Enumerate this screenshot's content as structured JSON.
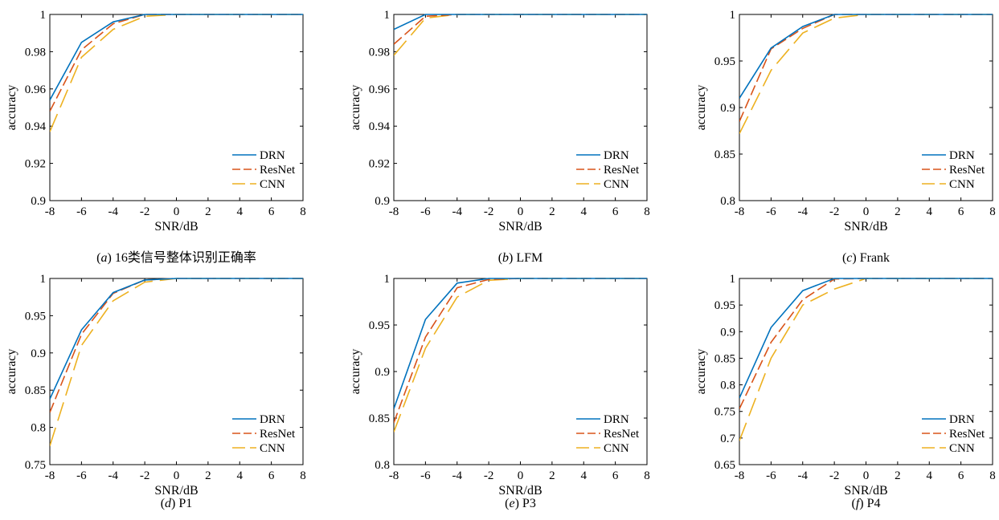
{
  "chart_data": [
    {
      "type": "line",
      "caption_tag": "a",
      "caption_text": "16类信号整体识别正确率",
      "xlabel": "SNR/dB",
      "ylabel": "accuracy",
      "xlim": [
        -8,
        8
      ],
      "ylim": [
        0.9,
        1
      ],
      "xticks": [
        "-8",
        "-6",
        "-4",
        "-2",
        "0",
        "2",
        "4",
        "6",
        "8"
      ],
      "yticks": [
        "0.9",
        "0.92",
        "0.94",
        "0.96",
        "0.98",
        "1"
      ],
      "legend_position": "bottom-right",
      "x": [
        -8,
        -6,
        -4,
        -2,
        0,
        2,
        4,
        6,
        8
      ],
      "series": [
        {
          "name": "DRN",
          "color": "#0072BD",
          "dash": "solid",
          "values": [
            0.954,
            0.985,
            0.996,
            1.0,
            1.0,
            1.0,
            1.0,
            1.0,
            1.0
          ]
        },
        {
          "name": "ResNet",
          "color": "#D95319",
          "dash": "dashed",
          "values": [
            0.948,
            0.981,
            0.995,
            1.0,
            1.0,
            1.0,
            1.0,
            1.0,
            1.0
          ]
        },
        {
          "name": "CNN",
          "color": "#EDB120",
          "dash": "longdash",
          "values": [
            0.937,
            0.977,
            0.992,
            0.999,
            1.0,
            1.0,
            1.0,
            1.0,
            1.0
          ]
        }
      ]
    },
    {
      "type": "line",
      "caption_tag": "b",
      "caption_text": "LFM",
      "xlabel": "SNR/dB",
      "ylabel": "accuracy",
      "xlim": [
        -8,
        8
      ],
      "ylim": [
        0.9,
        1
      ],
      "xticks": [
        "-8",
        "-6",
        "-4",
        "-2",
        "0",
        "2",
        "4",
        "6",
        "8"
      ],
      "yticks": [
        "0.9",
        "0.92",
        "0.94",
        "0.96",
        "0.98",
        "1"
      ],
      "legend_position": "bottom-right",
      "x": [
        -8,
        -6,
        -4,
        -2,
        0,
        2,
        4,
        6,
        8
      ],
      "series": [
        {
          "name": "DRN",
          "color": "#0072BD",
          "dash": "solid",
          "values": [
            0.992,
            1.0,
            1.0,
            1.0,
            1.0,
            1.0,
            1.0,
            1.0,
            1.0
          ]
        },
        {
          "name": "ResNet",
          "color": "#D95319",
          "dash": "dashed",
          "values": [
            0.984,
            0.999,
            1.0,
            1.0,
            1.0,
            1.0,
            1.0,
            1.0,
            1.0
          ]
        },
        {
          "name": "CNN",
          "color": "#EDB120",
          "dash": "longdash",
          "values": [
            0.978,
            0.998,
            1.0,
            1.0,
            1.0,
            1.0,
            1.0,
            1.0,
            1.0
          ]
        }
      ]
    },
    {
      "type": "line",
      "caption_tag": "c",
      "caption_text": "Frank",
      "xlabel": "SNR/dB",
      "ylabel": "accuracy",
      "xlim": [
        -8,
        8
      ],
      "ylim": [
        0.8,
        1
      ],
      "xticks": [
        "-8",
        "-6",
        "-4",
        "-2",
        "0",
        "2",
        "4",
        "6",
        "8"
      ],
      "yticks": [
        "0.8",
        "0.85",
        "0.9",
        "0.95",
        "1"
      ],
      "legend_position": "bottom-right",
      "x": [
        -8,
        -6,
        -4,
        -2,
        0,
        2,
        4,
        6,
        8
      ],
      "series": [
        {
          "name": "DRN",
          "color": "#0072BD",
          "dash": "solid",
          "values": [
            0.91,
            0.964,
            0.987,
            1.0,
            1.0,
            1.0,
            1.0,
            1.0,
            1.0
          ]
        },
        {
          "name": "ResNet",
          "color": "#D95319",
          "dash": "dashed",
          "values": [
            0.885,
            0.963,
            0.985,
            1.0,
            1.0,
            1.0,
            1.0,
            1.0,
            1.0
          ]
        },
        {
          "name": "CNN",
          "color": "#EDB120",
          "dash": "longdash",
          "values": [
            0.872,
            0.94,
            0.98,
            0.996,
            1.0,
            1.0,
            1.0,
            1.0,
            1.0
          ]
        }
      ]
    },
    {
      "type": "line",
      "caption_tag": "d",
      "caption_text": "P1",
      "xlabel": "SNR/dB",
      "ylabel": "accuracy",
      "xlim": [
        -8,
        8
      ],
      "ylim": [
        0.75,
        1
      ],
      "xticks": [
        "-8",
        "-6",
        "-4",
        "-2",
        "0",
        "2",
        "4",
        "6",
        "8"
      ],
      "yticks": [
        "0.75",
        "0.8",
        "0.85",
        "0.9",
        "0.95",
        "1"
      ],
      "legend_position": "bottom-right",
      "x": [
        -8,
        -6,
        -4,
        -2,
        0,
        2,
        4,
        6,
        8
      ],
      "series": [
        {
          "name": "DRN",
          "color": "#0072BD",
          "dash": "solid",
          "values": [
            0.838,
            0.931,
            0.981,
            0.998,
            1.0,
            1.0,
            1.0,
            1.0,
            1.0
          ]
        },
        {
          "name": "ResNet",
          "color": "#D95319",
          "dash": "dashed",
          "values": [
            0.82,
            0.925,
            0.98,
            0.998,
            1.0,
            1.0,
            1.0,
            1.0,
            1.0
          ]
        },
        {
          "name": "CNN",
          "color": "#EDB120",
          "dash": "longdash",
          "values": [
            0.775,
            0.91,
            0.97,
            0.995,
            1.0,
            1.0,
            1.0,
            1.0,
            1.0
          ]
        }
      ]
    },
    {
      "type": "line",
      "caption_tag": "e",
      "caption_text": "P3",
      "xlabel": "SNR/dB",
      "ylabel": "accuracy",
      "xlim": [
        -8,
        8
      ],
      "ylim": [
        0.8,
        1
      ],
      "xticks": [
        "-8",
        "-6",
        "-4",
        "-2",
        "0",
        "2",
        "4",
        "6",
        "8"
      ],
      "yticks": [
        "0.8",
        "0.85",
        "0.9",
        "0.95",
        "1"
      ],
      "legend_position": "bottom-right",
      "x": [
        -8,
        -6,
        -4,
        -2,
        0,
        2,
        4,
        6,
        8
      ],
      "series": [
        {
          "name": "DRN",
          "color": "#0072BD",
          "dash": "solid",
          "values": [
            0.86,
            0.956,
            0.995,
            1.0,
            1.0,
            1.0,
            1.0,
            1.0,
            1.0
          ]
        },
        {
          "name": "ResNet",
          "color": "#D95319",
          "dash": "dashed",
          "values": [
            0.845,
            0.937,
            0.99,
            0.999,
            1.0,
            1.0,
            1.0,
            1.0,
            1.0
          ]
        },
        {
          "name": "CNN",
          "color": "#EDB120",
          "dash": "longdash",
          "values": [
            0.835,
            0.925,
            0.98,
            0.998,
            1.0,
            1.0,
            1.0,
            1.0,
            1.0
          ]
        }
      ]
    },
    {
      "type": "line",
      "caption_tag": "f",
      "caption_text": "P4",
      "xlabel": "SNR/dB",
      "ylabel": "accuracy",
      "xlim": [
        -8,
        8
      ],
      "ylim": [
        0.65,
        1
      ],
      "xticks": [
        "-8",
        "-6",
        "-4",
        "-2",
        "0",
        "2",
        "4",
        "6",
        "8"
      ],
      "yticks": [
        "0.65",
        "0.7",
        "0.75",
        "0.8",
        "0.85",
        "0.9",
        "0.95",
        "1"
      ],
      "legend_position": "bottom-right",
      "x": [
        -8,
        -6,
        -4,
        -2,
        0,
        2,
        4,
        6,
        8
      ],
      "series": [
        {
          "name": "DRN",
          "color": "#0072BD",
          "dash": "solid",
          "values": [
            0.775,
            0.908,
            0.977,
            1.0,
            1.0,
            1.0,
            1.0,
            1.0,
            1.0
          ]
        },
        {
          "name": "ResNet",
          "color": "#D95319",
          "dash": "dashed",
          "values": [
            0.755,
            0.88,
            0.96,
            0.999,
            1.0,
            1.0,
            1.0,
            1.0,
            1.0
          ]
        },
        {
          "name": "CNN",
          "color": "#EDB120",
          "dash": "longdash",
          "values": [
            0.695,
            0.85,
            0.95,
            0.98,
            1.0,
            1.0,
            1.0,
            1.0,
            1.0
          ]
        }
      ]
    }
  ]
}
